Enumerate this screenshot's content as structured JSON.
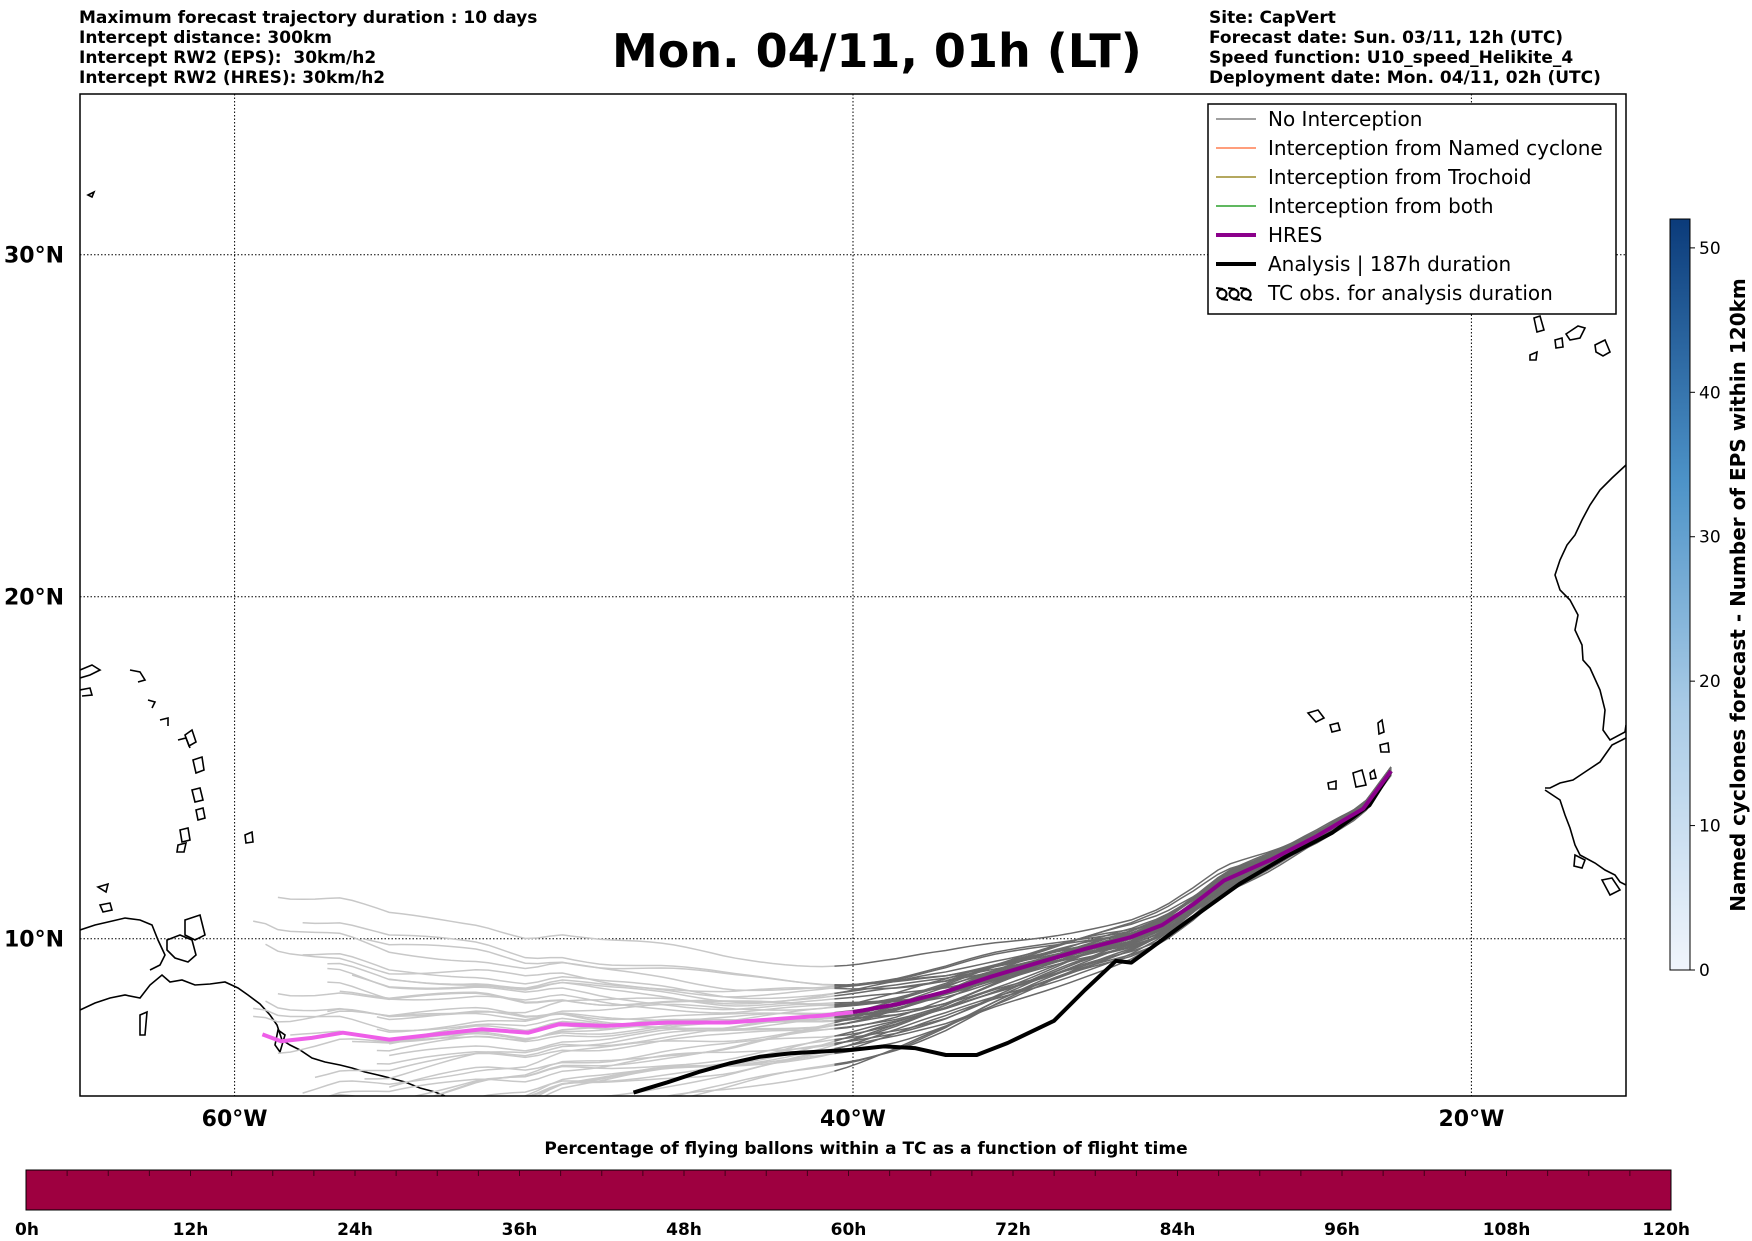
{
  "header": {
    "left_lines": [
      "Maximum forecast trajectory duration : 10 days",
      "Intercept distance: 300km",
      "Intercept RW2 (EPS):  30km/h2",
      "Intercept RW2 (HRES): 30km/h2"
    ],
    "title": "Mon. 04/11, 01h (LT)",
    "right_lines": [
      "Site: CapVert",
      "Forecast date: Sun. 03/11, 12h (UTC)",
      "Speed function: U10_speed_Helikite_4",
      "Deployment date: Mon. 04/11, 02h (UTC)"
    ]
  },
  "map": {
    "lon_range": [
      -65,
      -15
    ],
    "lat_range": [
      5.4,
      34.7
    ],
    "lat_labels": [
      "30°N",
      "20°N",
      "10°N"
    ],
    "lat_values": [
      30,
      20,
      10
    ],
    "lon_labels": [
      "60°W",
      "40°W",
      "20°W"
    ],
    "lon_values": [
      -60,
      -40,
      -20
    ]
  },
  "legend": {
    "items": [
      {
        "label": "No Interception",
        "color": "#808080",
        "width": 1.5,
        "icon": "line"
      },
      {
        "label": "Interception from Named cyclone",
        "color": "#ff7f50",
        "width": 1.5,
        "icon": "line"
      },
      {
        "label": "Interception from Trochoid",
        "color": "#9b8b2a",
        "width": 1.5,
        "icon": "line"
      },
      {
        "label": "Interception from both",
        "color": "#2ca02c",
        "width": 1.5,
        "icon": "line"
      },
      {
        "label": "HRES",
        "color": "#8b008b",
        "width": 4,
        "icon": "line"
      },
      {
        "label": "Analysis | 187h duration",
        "color": "#000000",
        "width": 4,
        "icon": "line"
      },
      {
        "label": "TC obs. for analysis duration",
        "color": "#000000",
        "width": 2,
        "icon": "tc-symbols"
      }
    ]
  },
  "colorbar_right": {
    "label": "Named cyclones forecast - Number of EPS within 120km",
    "ticks": [
      "0",
      "10",
      "20",
      "30",
      "40",
      "50"
    ],
    "tick_values": [
      0,
      10,
      20,
      30,
      40,
      50
    ],
    "max": 52,
    "color_low": "#e8f0fa",
    "color_high": "#0b3b7a"
  },
  "colorbar_bottom": {
    "title": "Percentage of flying ballons within a TC as a function of flight time",
    "ticks": [
      "0h",
      "12h",
      "24h",
      "36h",
      "48h",
      "60h",
      "72h",
      "84h",
      "96h",
      "108h",
      "120h"
    ],
    "fill_color": "#9e0040"
  },
  "trajectories": {
    "origin": [
      -22.6,
      14.9
    ],
    "hres": [
      [
        -22.6,
        14.9
      ],
      [
        -23.5,
        13.8
      ],
      [
        -25,
        13
      ],
      [
        -26.5,
        12.3
      ],
      [
        -28,
        11.7
      ],
      [
        -29,
        11
      ],
      [
        -30,
        10.4
      ],
      [
        -31,
        10.05
      ],
      [
        -32.5,
        9.7
      ],
      [
        -34,
        9.3
      ],
      [
        -35.5,
        8.9
      ],
      [
        -37,
        8.45
      ],
      [
        -38.5,
        8.1
      ],
      [
        -40,
        7.85
      ],
      [
        -41,
        7.75
      ],
      [
        -42.5,
        7.65
      ],
      [
        -44,
        7.55
      ],
      [
        -46,
        7.55
      ],
      [
        -48,
        7.45
      ],
      [
        -49.5,
        7.5
      ],
      [
        -50.5,
        7.25
      ],
      [
        -52,
        7.35
      ],
      [
        -53.5,
        7.2
      ],
      [
        -55,
        7.05
      ],
      [
        -56.5,
        7.25
      ],
      [
        -57.5,
        7.1
      ],
      [
        -58.5,
        7.0
      ],
      [
        -59.1,
        7.2
      ]
    ],
    "hres_split_lon": -40.7,
    "hres_color_east": "#8b008b",
    "hres_color_west": "#ee5ee8",
    "analysis": [
      [
        -22.6,
        14.9
      ],
      [
        -23.3,
        13.9
      ],
      [
        -24.5,
        13.1
      ],
      [
        -26,
        12.4
      ],
      [
        -27.5,
        11.6
      ],
      [
        -29.5,
        10.3
      ],
      [
        -31,
        9.3
      ],
      [
        -31.5,
        9.35
      ],
      [
        -32.5,
        8.5
      ],
      [
        -33.5,
        7.6
      ],
      [
        -35,
        6.95
      ],
      [
        -36,
        6.6
      ],
      [
        -37,
        6.6
      ],
      [
        -38,
        6.8
      ],
      [
        -39,
        6.85
      ],
      [
        -40,
        6.75
      ],
      [
        -41,
        6.7
      ],
      [
        -42,
        6.65
      ],
      [
        -43,
        6.55
      ],
      [
        -44,
        6.35
      ],
      [
        -45,
        6.1
      ],
      [
        -46,
        5.8
      ],
      [
        -47.1,
        5.5
      ]
    ],
    "eps_dark_color": "#6a6a6a",
    "eps_light_color": "#c8c8c8",
    "eps_split_lon": -40.7
  }
}
